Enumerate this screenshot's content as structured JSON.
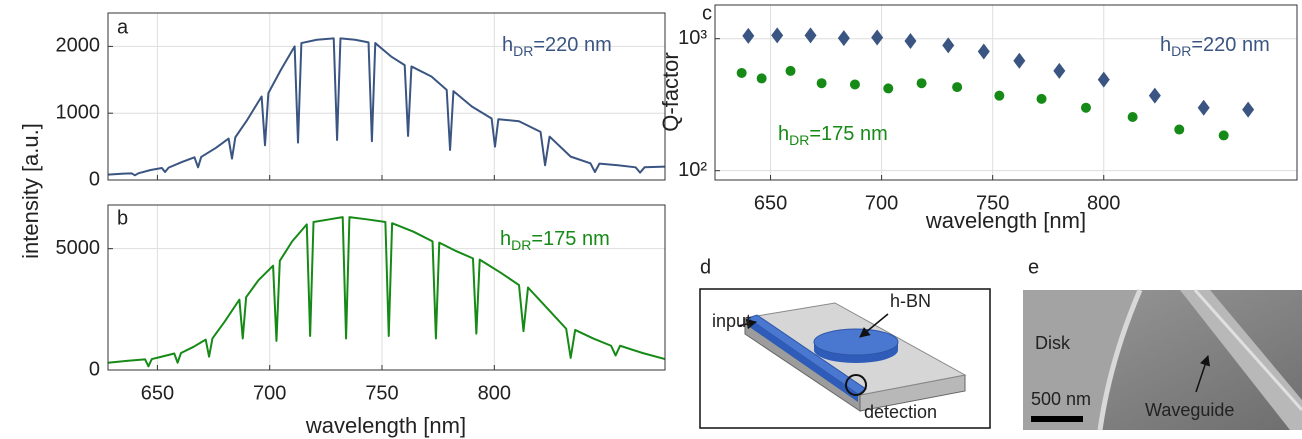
{
  "chart_data": [
    {
      "type": "line",
      "letter": "a",
      "ylabel": "intensity [a.u.]",
      "color": "#3b5583",
      "grid": true,
      "annotation": [
        "h",
        "DR",
        "=220 nm"
      ],
      "xlim": [
        628,
        876
      ],
      "ylim": [
        0,
        2500
      ],
      "yticks": [
        0,
        1000,
        2000
      ],
      "x": [
        628,
        635,
        638.5,
        640,
        641.5,
        647,
        652,
        653.4,
        655,
        661,
        666.5,
        668.1,
        669.5,
        676,
        681.7,
        683.2,
        684.7,
        690,
        696.4,
        697.9,
        699.4,
        705,
        711.1,
        712.6,
        714.1,
        721,
        728.5,
        730,
        731.5,
        738,
        744,
        745.5,
        747,
        754,
        760.1,
        761.6,
        763.1,
        772,
        778.8,
        780.3,
        781.8,
        790,
        798.8,
        800.3,
        801.8,
        811,
        820.6,
        822.6,
        824.6,
        834,
        842.8,
        844.8,
        846.8,
        855,
        862.9,
        864.9,
        866.9,
        876
      ],
      "values": [
        80,
        95,
        100,
        70,
        100,
        150,
        180,
        120,
        185,
        270,
        340,
        190,
        345,
        480,
        620,
        320,
        640,
        900,
        1250,
        520,
        1300,
        1650,
        2000,
        560,
        2050,
        2100,
        2120,
        600,
        2120,
        2100,
        2060,
        580,
        2050,
        1850,
        1720,
        660,
        1700,
        1550,
        1350,
        450,
        1330,
        1100,
        920,
        500,
        910,
        880,
        720,
        220,
        650,
        350,
        250,
        120,
        245,
        220,
        190,
        110,
        190,
        200
      ]
    },
    {
      "type": "line",
      "letter": "b",
      "xlabel": "wavelength [nm]",
      "color": "#168a16",
      "grid": true,
      "annotation": [
        "h",
        "DR",
        "=175 nm"
      ],
      "xlim": [
        628,
        876
      ],
      "ylim": [
        0,
        6800
      ],
      "xticks": [
        650,
        700,
        750,
        800
      ],
      "yticks": [
        0,
        5000
      ],
      "x": [
        628,
        637,
        644.5,
        646,
        647.5,
        652,
        657.5,
        659,
        660.5,
        666,
        671.5,
        673,
        674.5,
        680,
        686.5,
        688,
        689.5,
        695,
        701.5,
        703,
        704.5,
        710,
        716.5,
        718,
        719.5,
        726,
        732.5,
        734,
        735.5,
        744,
        751.5,
        753,
        754.5,
        764,
        772.5,
        774,
        775.5,
        783,
        790.5,
        792,
        793.5,
        803,
        811,
        813,
        815,
        824,
        832,
        834,
        836,
        844,
        852,
        854,
        856,
        866,
        876
      ],
      "values": [
        300,
        380,
        440,
        150,
        450,
        550,
        680,
        300,
        700,
        950,
        1250,
        550,
        1300,
        2000,
        2900,
        1300,
        3000,
        3700,
        4300,
        1200,
        4500,
        5300,
        6000,
        1400,
        6100,
        6200,
        6300,
        1300,
        6300,
        6200,
        6100,
        1400,
        6050,
        5700,
        5300,
        1300,
        5250,
        4900,
        4600,
        1500,
        4550,
        4000,
        3500,
        1600,
        3400,
        2500,
        1700,
        500,
        1650,
        1300,
        1000,
        600,
        1000,
        700,
        450
      ]
    },
    {
      "type": "scatter",
      "letter": "c",
      "ylabel": "Q-factor",
      "xlabel": "wavelength [nm]",
      "grid": true,
      "log_y": true,
      "xlim": [
        625,
        887
      ],
      "ylim": [
        85,
        1800
      ],
      "xticks": [
        650,
        700,
        750,
        800
      ],
      "yticks": [
        {
          "value": 100,
          "label": "10²"
        },
        {
          "value": 1000,
          "label": "10³"
        }
      ],
      "series": [
        {
          "label": [
            "h",
            "DR",
            "=220 nm"
          ],
          "color": "#3b5583",
          "marker": "diamond",
          "x": [
            640,
            653,
            668,
            683,
            698,
            713,
            730,
            746,
            762,
            780,
            800,
            823,
            845,
            865
          ],
          "values": [
            1050,
            1060,
            1060,
            1010,
            1020,
            960,
            890,
            800,
            680,
            570,
            490,
            370,
            300,
            290
          ]
        },
        {
          "label": [
            "h",
            "DR",
            "=175 nm"
          ],
          "color": "#168a16",
          "marker": "circle",
          "x": [
            637,
            646,
            659,
            673,
            688,
            703,
            718,
            734,
            753,
            772,
            792,
            813,
            834,
            854
          ],
          "values": [
            550,
            500,
            570,
            460,
            450,
            420,
            460,
            430,
            370,
            350,
            300,
            255,
            205,
            185
          ]
        }
      ]
    }
  ],
  "diagram": {
    "letter": "d",
    "input": "input",
    "material": "h-BN",
    "detection": "detection"
  },
  "image": {
    "letter": "e",
    "disk": "Disk",
    "scale": "500 nm",
    "waveguide": "Waveguide"
  }
}
